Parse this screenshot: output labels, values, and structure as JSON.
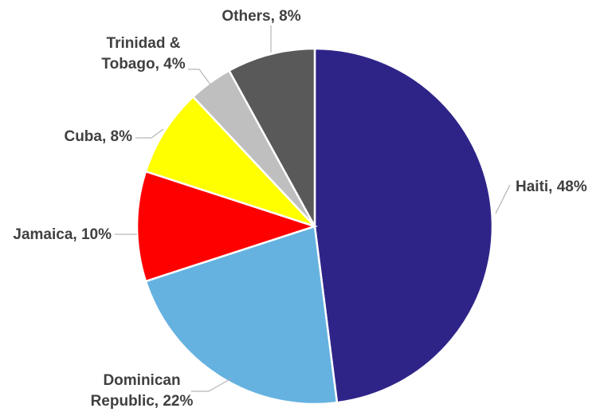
{
  "chart_data": {
    "type": "pie",
    "title": "",
    "slices": [
      {
        "name": "Haiti",
        "value": 48,
        "label_lines": [
          "Haiti, 48%"
        ],
        "color": "#2e2488"
      },
      {
        "name": "Dominican Republic",
        "value": 22,
        "label_lines": [
          "Dominican",
          "Republic, 22%"
        ],
        "color": "#65b2e0"
      },
      {
        "name": "Jamaica",
        "value": 10,
        "label_lines": [
          "Jamaica, 10%"
        ],
        "color": "#ff0000"
      },
      {
        "name": "Cuba",
        "value": 8,
        "label_lines": [
          "Cuba, 8%"
        ],
        "color": "#ffff00"
      },
      {
        "name": "Trinidad & Tobago",
        "value": 4,
        "label_lines": [
          "Trinidad &",
          "Tobago, 4%"
        ],
        "color": "#bfbfbf"
      },
      {
        "name": "Others",
        "value": 8,
        "label_lines": [
          "Others, 8%"
        ],
        "color": "#595959"
      }
    ]
  }
}
